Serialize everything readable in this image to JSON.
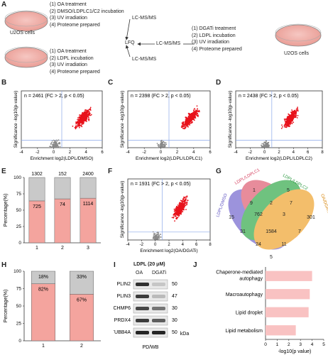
{
  "panelA": {
    "letter": "A",
    "cells_left": "U2OS cells",
    "cells_right": "U2OS cells",
    "box1": [
      "(1) OA treatment",
      "(2) DMSO/LDPLC1/C2 incubation",
      "(3) UV irradiation",
      "(4) Proteome prepared"
    ],
    "box2": [
      "(1) OA treatment",
      "(2) LDPL incubation",
      "(3) UV irradiation",
      "(4) Proteome prepared"
    ],
    "box3": [
      "(1) DGATi treatment",
      "(2) LDPL incubation",
      "(3) UV irradiation",
      "(4) Proteome prepared"
    ],
    "lcms1": "LC-MS/MS",
    "lcms2": "LC-MS/MS",
    "lcms3": "LC-MS/MS",
    "lfq": "LFQ"
  },
  "panelB": {
    "letter": "B",
    "n_label": "n = 2461 (FC > 2, p < 0.05)",
    "xlabel": "Enrichment log2(LDPL/DMSO)",
    "ylabel": "Significance -log10(p-value)"
  },
  "panelC": {
    "letter": "C",
    "n_label": "n = 2398 (FC > 2, p < 0.05)",
    "xlabel": "Enrichment log2(LDPL/LDPLC1)",
    "ylabel": "Significance -log10(p-value)"
  },
  "panelD": {
    "letter": "D",
    "n_label": "n = 2438 (FC > 2, p < 0.05)",
    "xlabel": "Enrichment log2(LDPL/LDPLC2)",
    "ylabel": "Significance -log10(p-value)"
  },
  "panelF": {
    "letter": "F",
    "n_label": "n = 1931 (FC > 2, p < 0.05)",
    "xlabel": "Enrichment log2(OA/DGATi)",
    "ylabel": "Significance -log10(p-value)"
  },
  "panelE": {
    "letter": "E",
    "ylabel": "Percentage(%)",
    "yticks": [
      "100",
      "75",
      "50",
      "25",
      "0"
    ],
    "bars": [
      {
        "x": "1",
        "top": "1302",
        "mid": "725"
      },
      {
        "x": "2",
        "top": "152",
        "mid": "74"
      },
      {
        "x": "3",
        "top": "2400",
        "mid": "1114"
      }
    ]
  },
  "panelG": {
    "letter": "G",
    "labels": [
      "LDPL/LDPLC1",
      "LDPL/LDPLC2",
      "LDPL/DMSO",
      "OA/DGATi"
    ],
    "counts": [
      "1",
      "5",
      "9",
      "7",
      "2",
      "301",
      "15",
      "762",
      "3",
      "31",
      "1584",
      "7",
      "24",
      "11",
      "5"
    ]
  },
  "panelH": {
    "letter": "H",
    "ylabel": "Percentage(%)",
    "yticks": [
      "100",
      "75",
      "50",
      "25",
      "0"
    ],
    "bars": [
      {
        "x": "1",
        "top": "18%",
        "mid": "82%"
      },
      {
        "x": "2",
        "top": "33%",
        "mid": "67%"
      }
    ]
  },
  "panelI": {
    "letter": "I",
    "title": "LDPL (20 μM)",
    "cols": [
      "OA",
      "DGATi"
    ],
    "rows": [
      "PLIN2",
      "PLIN3",
      "CHMP6",
      "PRDX4",
      "TUBB4A"
    ],
    "kda": [
      "50",
      "47",
      "30",
      "30",
      "50"
    ],
    "kda_unit": "kDa",
    "footer": "PD/WB"
  },
  "panelJ": {
    "letter": "J",
    "xlabel": "-log10(p value)",
    "xticks": [
      "0",
      "1",
      "2",
      "3",
      "4",
      "5"
    ],
    "categories": [
      "Chaperone-mediated autophagy",
      "Macroautophagy",
      "Lipid droplet",
      "Lipid metabolism"
    ]
  },
  "colors": {
    "red": "#e8121b",
    "salmon": "#f4a49e",
    "grey": "#c9c9c9",
    "pink": "#f9c2c2",
    "threshold": "#8aa7e8"
  },
  "chart_data": [
    {
      "type": "scatter",
      "title": "n = 2461 (FC > 2, p < 0.05)",
      "xlabel": "Enrichment log2(LDPL/DMSO)",
      "ylabel": "Significance -log10(p-value)",
      "xlim": [
        -4,
        6
      ],
      "ylim": [
        0,
        10
      ],
      "thresholds": {
        "x": 1,
        "y": 1.3
      }
    },
    {
      "type": "scatter",
      "title": "n = 2398 (FC > 2, p < 0.05)",
      "xlabel": "Enrichment log2(LDPL/LDPLC1)",
      "ylabel": "Significance -log10(p-value)",
      "xlim": [
        -4,
        6
      ],
      "ylim": [
        0,
        10
      ],
      "thresholds": {
        "x": 1,
        "y": 1.3
      }
    },
    {
      "type": "scatter",
      "title": "n = 2438 (FC > 2, p < 0.05)",
      "xlabel": "Enrichment log2(LDPL/LDPLC2)",
      "ylabel": "Significance -log10(p-value)",
      "xlim": [
        -4,
        8
      ],
      "ylim": [
        0,
        10
      ],
      "thresholds": {
        "x": 1,
        "y": 1.3
      }
    },
    {
      "type": "scatter",
      "title": "n = 1931 (FC > 2, p < 0.05)",
      "xlabel": "Enrichment log2(OA/DGATi)",
      "ylabel": "Significance -log10(p-value)",
      "xlim": [
        -4,
        8
      ],
      "ylim": [
        0,
        10
      ],
      "thresholds": {
        "x": 1,
        "y": 1.3
      }
    },
    {
      "type": "bar",
      "stacked": true,
      "ylabel": "Percentage(%)",
      "ylim": [
        0,
        100
      ],
      "categories": [
        "1",
        "2",
        "3"
      ],
      "series": [
        {
          "values": [
            35.8,
            32.7,
            31.7
          ],
          "labels": [
            "1302",
            "152",
            "2400"
          ]
        },
        {
          "values": [
            64.2,
            67.3,
            68.3
          ],
          "labels": [
            "725",
            "74",
            "1114"
          ]
        }
      ]
    },
    {
      "type": "bar",
      "stacked": true,
      "ylabel": "Percentage(%)",
      "ylim": [
        0,
        100
      ],
      "categories": [
        "1",
        "2"
      ],
      "series": [
        {
          "values": [
            18,
            33
          ]
        },
        {
          "values": [
            82,
            67
          ]
        }
      ]
    },
    {
      "type": "bar",
      "orientation": "horizontal",
      "xlabel": "-log10(p value)",
      "xlim": [
        0,
        5
      ],
      "categories": [
        "Chaperone-mediated autophagy",
        "Macroautophagy",
        "Lipid droplet",
        "Lipid metabolism"
      ],
      "values": [
        4.0,
        3.8,
        3.7,
        2.6
      ]
    }
  ]
}
